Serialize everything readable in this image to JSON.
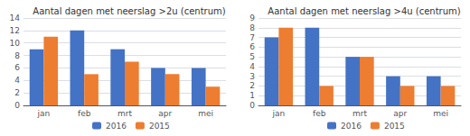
{
  "chart_data": [
    {
      "type": "bar",
      "title": "Aantal dagen met neerslag >2u (centrum)",
      "categories": [
        "jan",
        "feb",
        "mrt",
        "apr",
        "mei"
      ],
      "series": [
        {
          "name": "2016",
          "color": "#4472C4",
          "values": [
            9,
            12,
            9,
            6,
            6
          ]
        },
        {
          "name": "2015",
          "color": "#ED7D31",
          "values": [
            11,
            5,
            7,
            5,
            3
          ]
        }
      ],
      "ylim": [
        0,
        14
      ],
      "yticks": [
        0,
        2,
        4,
        6,
        8,
        10,
        12,
        14
      ],
      "grid": true,
      "legend": "bottom"
    },
    {
      "type": "bar",
      "title": "Aantal dagen met neerslag >4u (centrum)",
      "categories": [
        "jan",
        "feb",
        "mrt",
        "apr",
        "mei"
      ],
      "series": [
        {
          "name": "2016",
          "color": "#4472C4",
          "values": [
            7,
            8,
            5,
            3,
            3
          ]
        },
        {
          "name": "2015",
          "color": "#ED7D31",
          "values": [
            8,
            2,
            5,
            2,
            2
          ]
        }
      ],
      "ylim": [
        0,
        9
      ],
      "yticks": [
        0,
        1,
        2,
        3,
        4,
        5,
        6,
        7,
        8,
        9
      ],
      "grid": true,
      "legend": "bottom"
    }
  ]
}
